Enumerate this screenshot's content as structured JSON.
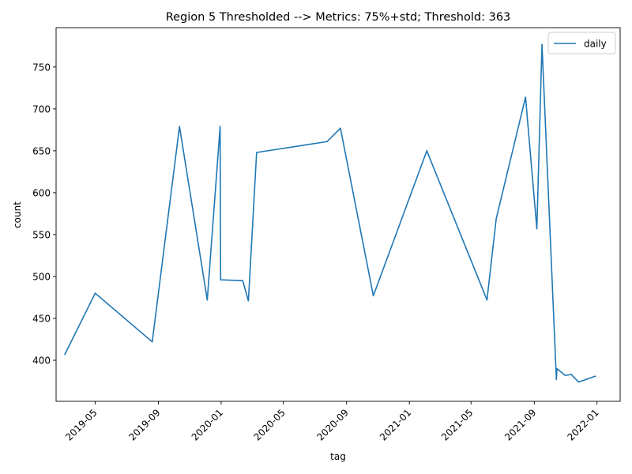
{
  "chart_data": {
    "type": "line",
    "title": "Region 5 Thresholded --> Metrics: 75%+std; Threshold: 363",
    "xlabel": "tag",
    "ylabel": "count",
    "grid": false,
    "legend_position": "top-right",
    "xlim": [
      "2019-02-14",
      "2022-02-15"
    ],
    "ylim": [
      351,
      797
    ],
    "x_ticks": [
      "2019-05",
      "2019-09",
      "2020-01",
      "2020-05",
      "2020-09",
      "2021-01",
      "2021-05",
      "2021-09",
      "2022-01"
    ],
    "y_ticks": [
      400,
      450,
      500,
      550,
      600,
      650,
      700,
      750
    ],
    "series": [
      {
        "name": "daily",
        "color": "#1f77b4",
        "x": [
          "2019-03-03",
          "2019-05-01",
          "2019-08-20",
          "2019-10-12",
          "2019-12-05",
          "2019-12-30",
          "2019-12-31",
          "2020-02-12",
          "2020-02-23",
          "2020-03-10",
          "2020-07-25",
          "2020-08-20",
          "2020-10-23",
          "2021-02-04",
          "2021-06-01",
          "2021-06-19",
          "2021-08-15",
          "2021-09-06",
          "2021-09-16",
          "2021-10-14",
          "2021-10-15",
          "2021-10-31",
          "2021-11-12",
          "2021-11-26",
          "2021-12-29"
        ],
        "y": [
          407,
          480,
          422,
          679,
          472,
          679,
          496,
          495,
          471,
          648,
          661,
          677,
          477,
          650,
          472,
          569,
          714,
          557,
          777,
          377,
          390,
          382,
          383,
          374,
          381
        ]
      }
    ]
  }
}
